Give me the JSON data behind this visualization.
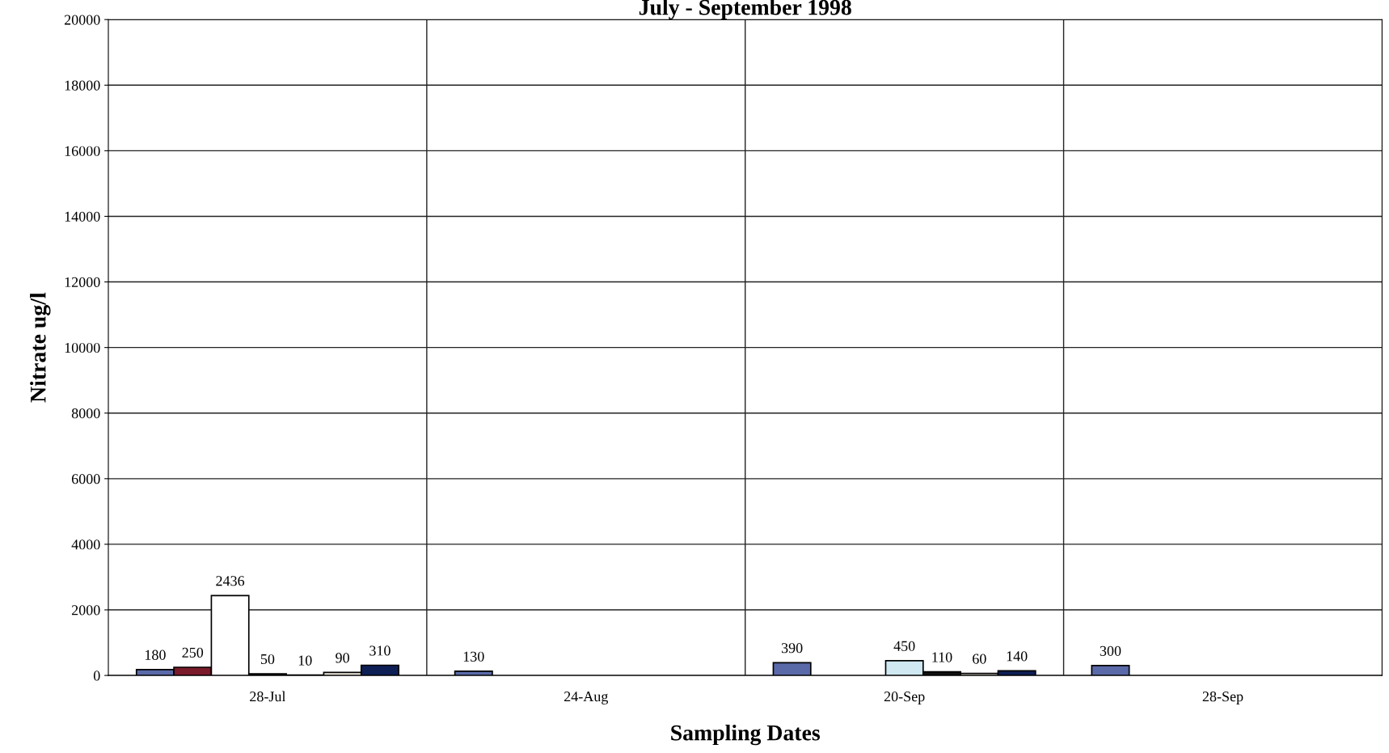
{
  "chart_data": {
    "type": "bar",
    "title": "July - September 1998",
    "xlabel": "Sampling Dates",
    "ylabel": "Nitrate ug/l",
    "categories": [
      "28-Jul",
      "24-Aug",
      "20-Sep",
      "28-Sep"
    ],
    "series": [
      {
        "color": "#5a6aa8",
        "values": [
          180,
          130,
          390,
          300
        ],
        "value_labels": [
          "180",
          "130",
          "390",
          "300"
        ]
      },
      {
        "color": "#7a1a2a",
        "values": [
          250,
          null,
          null,
          null
        ],
        "value_labels": [
          "250",
          null,
          null,
          null
        ]
      },
      {
        "color": "#ffffff",
        "values": [
          2436,
          null,
          null,
          null
        ],
        "value_labels": [
          "2436",
          null,
          null,
          null
        ]
      },
      {
        "colors": [
          "#111111",
          "#111111",
          "#cfe8f2",
          "#111111"
        ],
        "values": [
          50,
          null,
          450,
          null
        ],
        "value_labels": [
          "50",
          null,
          "450",
          null
        ]
      },
      {
        "color": "#111111",
        "values": [
          10,
          null,
          110,
          null
        ],
        "value_labels": [
          "10",
          null,
          "110",
          null
        ]
      },
      {
        "color": "#f3ede0",
        "values": [
          90,
          null,
          60,
          null
        ],
        "value_labels": [
          "90",
          null,
          "60",
          null
        ]
      },
      {
        "color": "#0d1f55",
        "values": [
          310,
          null,
          140,
          null
        ],
        "value_labels": [
          "310",
          null,
          "140",
          null
        ]
      }
    ],
    "ylim": [
      0,
      20000
    ],
    "yticks": [
      0,
      2000,
      4000,
      6000,
      8000,
      10000,
      12000,
      14000,
      16000,
      18000,
      20000
    ],
    "grid": true,
    "legend": false
  }
}
